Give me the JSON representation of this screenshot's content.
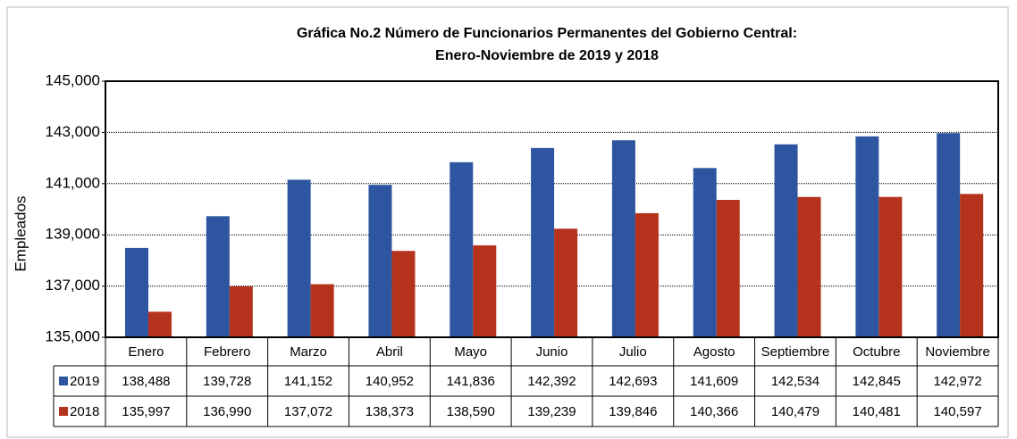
{
  "chart_data": {
    "type": "bar",
    "title": [
      "Gráfica No.2 Número de Funcionarios Permanentes del Gobierno Central:",
      "Enero-Noviembre de 2019 y 2018"
    ],
    "y_label": "Empleados",
    "categories": [
      "Enero",
      "Febrero",
      "Marzo",
      "Abril",
      "Mayo",
      "Junio",
      "Julio",
      "Agosto",
      "Septiembre",
      "Octubre",
      "Noviembre"
    ],
    "series": [
      {
        "name": "2019",
        "color": "#2e55a0",
        "values": [
          138488,
          139728,
          141152,
          140952,
          141836,
          142392,
          142693,
          141609,
          142534,
          142845,
          142972
        ],
        "value_labels": [
          "138,488",
          "139,728",
          "141,152",
          "140,952",
          "141,836",
          "142,392",
          "142,693",
          "141,609",
          "142,534",
          "142,845",
          "142,972"
        ]
      },
      {
        "name": "2018",
        "color": "#b5321c",
        "values": [
          135997,
          136990,
          137072,
          138373,
          138590,
          139239,
          139846,
          140366,
          140479,
          140481,
          140597
        ],
        "value_labels": [
          "135,997",
          "136,990",
          "137,072",
          "138,373",
          "138,590",
          "139,239",
          "139,846",
          "140,366",
          "140,479",
          "140,481",
          "140,597"
        ]
      }
    ],
    "ylim": [
      135000,
      145000
    ],
    "yticks": [
      {
        "value": 135000,
        "label": "135,000"
      },
      {
        "value": 137000,
        "label": "137,000"
      },
      {
        "value": 139000,
        "label": "139,000"
      },
      {
        "value": 141000,
        "label": "141,000"
      },
      {
        "value": 143000,
        "label": "143,000"
      },
      {
        "value": 145000,
        "label": "145,000"
      }
    ],
    "grid": true
  }
}
